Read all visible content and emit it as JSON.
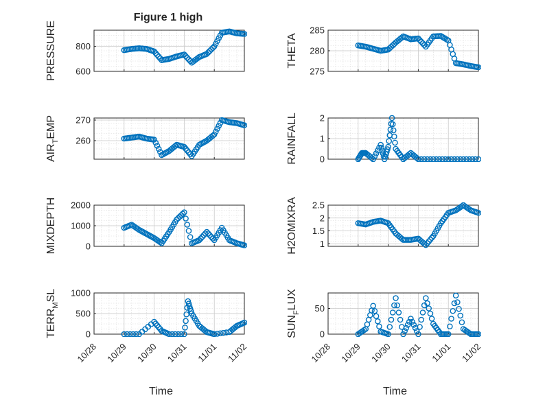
{
  "figure_title": "Figure 1 high",
  "colors": {
    "marker": "#0072bd",
    "axes": "#262626",
    "grid": "#c8c8c8"
  },
  "chart_data": [
    {
      "type": "scatter",
      "title": "Figure 1 high",
      "ylabel": "PRESSURE",
      "xlabel": "",
      "ylim": [
        600,
        930
      ],
      "yticks": [
        600,
        800
      ],
      "ytick_labels": [
        "600",
        "800"
      ],
      "grid": true,
      "x": [
        "10/29 00:00",
        "10/29 06:00",
        "10/29 12:00",
        "10/29 18:00",
        "10/30 00:00",
        "10/30 06:00",
        "10/30 12:00",
        "10/30 18:00",
        "10/31 00:00",
        "10/31 06:00",
        "10/31 12:00",
        "10/31 18:00",
        "11/01 00:00",
        "11/01 06:00",
        "11/01 12:00",
        "11/01 18:00",
        "11/02 00:00"
      ],
      "y": [
        770,
        780,
        785,
        780,
        760,
        690,
        700,
        720,
        735,
        670,
        715,
        740,
        800,
        910,
        920,
        905,
        900
      ]
    },
    {
      "type": "scatter",
      "ylabel": "THETA",
      "xlabel": "",
      "ylim": [
        275,
        285
      ],
      "yticks": [
        275,
        280,
        285
      ],
      "ytick_labels": [
        "275",
        "280",
        "285"
      ],
      "grid": true,
      "x": [
        "10/29 00:00",
        "10/29 06:00",
        "10/29 12:00",
        "10/29 18:00",
        "10/30 00:00",
        "10/30 06:00",
        "10/30 12:00",
        "10/30 18:00",
        "10/31 00:00",
        "10/31 06:00",
        "10/31 12:00",
        "10/31 18:00",
        "11/01 00:00",
        "11/01 06:00",
        "11/01 12:00",
        "11/01 18:00",
        "11/02 00:00"
      ],
      "y": [
        281.3,
        281.0,
        280.5,
        280.0,
        280.3,
        282.0,
        283.5,
        282.8,
        283.0,
        281.0,
        283.5,
        283.6,
        282.5,
        277.0,
        276.7,
        276.3,
        276.0
      ]
    },
    {
      "type": "scatter",
      "ylabel": "AIR_TEMP",
      "xlabel": "",
      "ylim": [
        251,
        271
      ],
      "yticks": [
        260,
        270
      ],
      "ytick_labels": [
        "260",
        "270"
      ],
      "grid": true,
      "x": [
        "10/29 00:00",
        "10/29 06:00",
        "10/29 12:00",
        "10/29 18:00",
        "10/30 00:00",
        "10/30 06:00",
        "10/30 12:00",
        "10/30 18:00",
        "10/31 00:00",
        "10/31 06:00",
        "10/31 12:00",
        "10/31 18:00",
        "11/01 00:00",
        "11/01 06:00",
        "11/01 12:00",
        "11/01 18:00",
        "11/02 00:00"
      ],
      "y": [
        261,
        261.5,
        262,
        261,
        260.5,
        253,
        255,
        258,
        257,
        252.5,
        258,
        260,
        263,
        270,
        269,
        268.5,
        267.5
      ]
    },
    {
      "type": "scatter",
      "ylabel": "RAINFALL",
      "xlabel": "",
      "ylim": [
        0,
        2
      ],
      "yticks": [
        0,
        1,
        2
      ],
      "ytick_labels": [
        "0",
        "1",
        "2"
      ],
      "grid": true,
      "x": [
        "10/29 00:00",
        "10/29 03:00",
        "10/29 06:00",
        "10/29 12:00",
        "10/29 18:00",
        "10/29 21:00",
        "10/30 00:00",
        "10/30 03:00",
        "10/30 06:00",
        "10/30 12:00",
        "10/30 18:00",
        "10/31 00:00",
        "10/31 12:00",
        "11/01 00:00",
        "11/01 12:00",
        "11/02 00:00"
      ],
      "y": [
        0,
        0.3,
        0.3,
        0,
        0.7,
        0,
        0.6,
        2.0,
        0.5,
        0,
        0.3,
        0,
        0,
        0,
        0,
        0
      ]
    },
    {
      "type": "scatter",
      "ylabel": "MIXDEPTH",
      "xlabel": "",
      "ylim": [
        0,
        2000
      ],
      "yticks": [
        0,
        1000,
        2000
      ],
      "ytick_labels": [
        "0",
        "1000",
        "2000"
      ],
      "grid": true,
      "x": [
        "10/29 00:00",
        "10/29 06:00",
        "10/29 12:00",
        "10/29 18:00",
        "10/30 00:00",
        "10/30 06:00",
        "10/30 12:00",
        "10/30 18:00",
        "10/31 00:00",
        "10/31 06:00",
        "10/31 12:00",
        "10/31 18:00",
        "11/01 00:00",
        "11/01 06:00",
        "11/01 12:00",
        "11/01 18:00",
        "11/02 00:00"
      ],
      "y": [
        900,
        1050,
        800,
        600,
        400,
        150,
        700,
        1300,
        1650,
        150,
        300,
        700,
        300,
        900,
        300,
        150,
        50
      ]
    },
    {
      "type": "scatter",
      "ylabel": "H2OMIXRA",
      "xlabel": "",
      "ylim": [
        0.9,
        2.5
      ],
      "yticks": [
        1,
        1.5,
        2,
        2.5
      ],
      "ytick_labels": [
        "1",
        "1.5",
        "2",
        "2.5"
      ],
      "grid": true,
      "x": [
        "10/29 00:00",
        "10/29 06:00",
        "10/29 12:00",
        "10/29 18:00",
        "10/30 00:00",
        "10/30 06:00",
        "10/30 12:00",
        "10/30 18:00",
        "10/31 00:00",
        "10/31 06:00",
        "10/31 12:00",
        "10/31 18:00",
        "11/01 00:00",
        "11/01 06:00",
        "11/01 12:00",
        "11/01 18:00",
        "11/02 00:00"
      ],
      "y": [
        1.8,
        1.75,
        1.85,
        1.9,
        1.8,
        1.4,
        1.15,
        1.15,
        1.2,
        0.95,
        1.3,
        1.8,
        2.2,
        2.3,
        2.5,
        2.3,
        2.2
      ]
    },
    {
      "type": "scatter",
      "ylabel": "TERR_MSL",
      "xlabel": "Time",
      "ylim": [
        0,
        1000
      ],
      "yticks": [
        0,
        500,
        1000
      ],
      "ytick_labels": [
        "0",
        "500",
        "1000"
      ],
      "grid": true,
      "x": [
        "10/29 00:00",
        "10/29 12:00",
        "10/30 00:00",
        "10/30 06:00",
        "10/30 12:00",
        "10/31 00:00",
        "10/31 03:00",
        "10/31 06:00",
        "10/31 12:00",
        "10/31 18:00",
        "11/01 00:00",
        "11/01 12:00",
        "11/01 18:00",
        "11/02 00:00"
      ],
      "y": [
        0,
        0,
        300,
        80,
        0,
        0,
        800,
        500,
        200,
        50,
        0,
        50,
        200,
        280
      ]
    },
    {
      "type": "scatter",
      "ylabel": "SUN_FLUX",
      "xlabel": "Time",
      "ylim": [
        0,
        80
      ],
      "yticks": [
        0,
        50
      ],
      "ytick_labels": [
        "0",
        "50"
      ],
      "grid": true,
      "x": [
        "10/29 00:00",
        "10/29 06:00",
        "10/29 12:00",
        "10/29 18:00",
        "10/30 00:00",
        "10/30 06:00",
        "10/30 12:00",
        "10/30 18:00",
        "10/31 00:00",
        "10/31 06:00",
        "10/31 12:00",
        "10/31 18:00",
        "11/01 00:00",
        "11/01 06:00",
        "11/01 12:00",
        "11/01 18:00",
        "11/02 00:00"
      ],
      "y": [
        0,
        10,
        55,
        5,
        0,
        70,
        0,
        30,
        0,
        70,
        20,
        0,
        0,
        75,
        10,
        0,
        0
      ]
    }
  ],
  "x_axis": {
    "ticks": [
      "10/28",
      "10/29",
      "10/30",
      "10/31",
      "11/01",
      "11/02"
    ],
    "tick_labels": [
      "10/28",
      "10/29",
      "10/30",
      "10/31",
      "11/01",
      "11/02"
    ]
  }
}
